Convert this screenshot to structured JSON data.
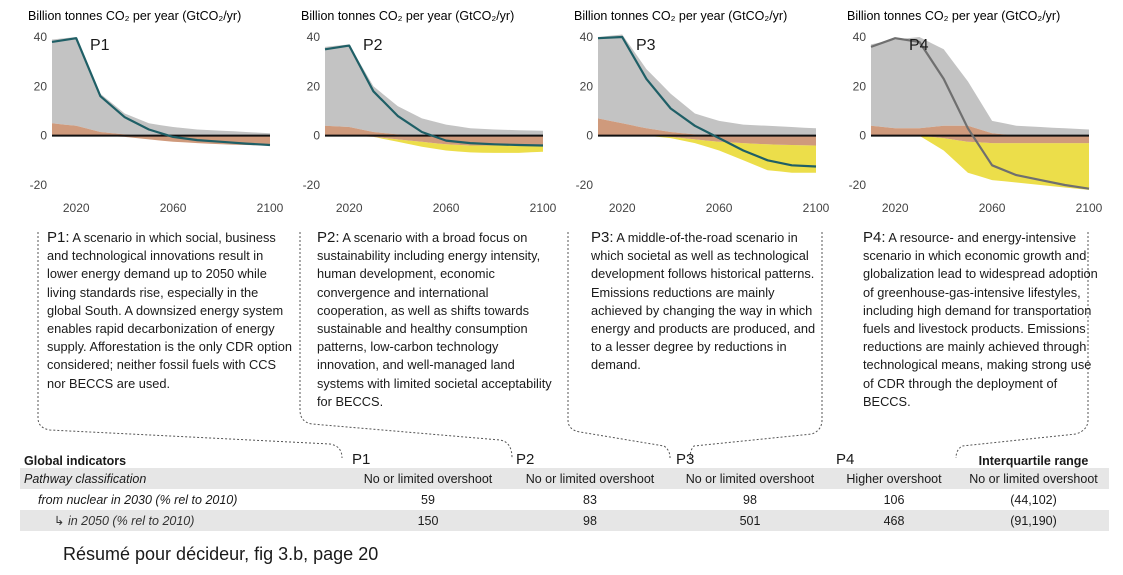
{
  "y_axis_title": "Billion tonnes CO₂ per year (GtCO₂/yr)",
  "chart_data": [
    {
      "type": "area",
      "panel_label": "P1",
      "title": "Billion tonnes CO₂ per year (GtCO₂/yr)",
      "x_ticks": [
        2020,
        2060,
        2100
      ],
      "y_ticks": [
        40,
        20,
        0,
        -20
      ],
      "xlim": [
        2010,
        2100
      ],
      "ylim": [
        -20,
        40
      ],
      "grid": false,
      "series": [
        {
          "role": "gray",
          "x": [
            2010,
            2020,
            2030,
            2040,
            2050,
            2060,
            2070,
            2080,
            2090,
            2100
          ],
          "values": [
            39,
            40,
            17,
            9,
            5,
            3.5,
            2.5,
            2,
            1.5,
            1
          ]
        },
        {
          "role": "tan_upper",
          "x": [
            2010,
            2020,
            2030,
            2040,
            2050,
            2060,
            2070,
            2080,
            2090,
            2100
          ],
          "values": [
            5,
            4,
            1.5,
            0.5,
            0,
            0,
            0,
            0,
            0,
            0
          ]
        },
        {
          "role": "tan_lower",
          "x": [
            2010,
            2020,
            2030,
            2040,
            2050,
            2060,
            2070,
            2080,
            2090,
            2100
          ],
          "values": [
            0,
            0,
            0,
            -0.5,
            -1.5,
            -2.5,
            -3,
            -3.5,
            -3.8,
            -4
          ]
        },
        {
          "role": "yellow_lower",
          "x": [
            2010,
            2100
          ],
          "values": [
            0,
            0
          ]
        },
        {
          "role": "net_line",
          "x": [
            2010,
            2020,
            2030,
            2040,
            2050,
            2060,
            2070,
            2080,
            2090,
            2100
          ],
          "values": [
            38,
            39.5,
            16,
            7.5,
            2.5,
            -0.5,
            -1.8,
            -2.5,
            -3.2,
            -3.8
          ]
        }
      ]
    },
    {
      "type": "area",
      "panel_label": "P2",
      "title": "Billion tonnes CO₂ per year (GtCO₂/yr)",
      "x_ticks": [
        2020,
        2060,
        2100
      ],
      "y_ticks": [
        40,
        20,
        0,
        -20
      ],
      "xlim": [
        2010,
        2100
      ],
      "ylim": [
        -20,
        40
      ],
      "grid": false,
      "series": [
        {
          "role": "gray",
          "x": [
            2010,
            2020,
            2030,
            2040,
            2050,
            2060,
            2070,
            2080,
            2090,
            2100
          ],
          "values": [
            36,
            37,
            20,
            12,
            7,
            4.5,
            3,
            2.5,
            2.2,
            2
          ]
        },
        {
          "role": "tan_upper",
          "x": [
            2010,
            2020,
            2030,
            2040,
            2050,
            2060,
            2070,
            2080,
            2090,
            2100
          ],
          "values": [
            4,
            3.5,
            1.5,
            0.5,
            0,
            0,
            0,
            0,
            0,
            0
          ]
        },
        {
          "role": "tan_lower",
          "x": [
            2010,
            2020,
            2030,
            2040,
            2050,
            2060,
            2070,
            2080,
            2090,
            2100
          ],
          "values": [
            0,
            0,
            -0.5,
            -1.5,
            -2.5,
            -3.5,
            -4,
            -4,
            -4,
            -4
          ]
        },
        {
          "role": "yellow_lower",
          "x": [
            2010,
            2020,
            2030,
            2040,
            2050,
            2060,
            2070,
            2080,
            2090,
            2100
          ],
          "values": [
            0,
            0,
            -0.5,
            -2.5,
            -4.5,
            -6,
            -6.8,
            -7,
            -7,
            -6.5
          ]
        },
        {
          "role": "net_line",
          "x": [
            2010,
            2020,
            2030,
            2040,
            2050,
            2060,
            2070,
            2080,
            2090,
            2100
          ],
          "values": [
            35,
            36.5,
            18,
            8,
            1.5,
            -2,
            -3,
            -3.5,
            -3.8,
            -4
          ]
        }
      ]
    },
    {
      "type": "area",
      "panel_label": "P3",
      "title": "Billion tonnes CO₂ per year (GtCO₂/yr)",
      "x_ticks": [
        2020,
        2060,
        2100
      ],
      "y_ticks": [
        40,
        20,
        0,
        -20
      ],
      "xlim": [
        2010,
        2100
      ],
      "ylim": [
        -20,
        40
      ],
      "grid": false,
      "series": [
        {
          "role": "gray",
          "x": [
            2010,
            2020,
            2030,
            2040,
            2050,
            2060,
            2070,
            2080,
            2090,
            2100
          ],
          "values": [
            40,
            41,
            27,
            17,
            9,
            6,
            4.5,
            4,
            3.5,
            3
          ]
        },
        {
          "role": "tan_upper",
          "x": [
            2010,
            2020,
            2030,
            2040,
            2050,
            2060,
            2070,
            2080,
            2090,
            2100
          ],
          "values": [
            7,
            5,
            3,
            1.5,
            0.5,
            0,
            0,
            0,
            0,
            0
          ]
        },
        {
          "role": "tan_lower",
          "x": [
            2010,
            2020,
            2030,
            2040,
            2050,
            2060,
            2070,
            2080,
            2090,
            2100
          ],
          "values": [
            0,
            0,
            0,
            -0.5,
            -1.5,
            -2.5,
            -3,
            -3.5,
            -3.8,
            -4
          ]
        },
        {
          "role": "yellow_lower",
          "x": [
            2010,
            2020,
            2030,
            2040,
            2050,
            2060,
            2070,
            2080,
            2090,
            2100
          ],
          "values": [
            0,
            0,
            0,
            -1,
            -3,
            -6,
            -10,
            -14,
            -15,
            -15
          ]
        },
        {
          "role": "net_line",
          "x": [
            2010,
            2020,
            2030,
            2040,
            2050,
            2060,
            2070,
            2080,
            2090,
            2100
          ],
          "values": [
            39.5,
            40,
            23,
            11,
            4,
            -1,
            -6,
            -10,
            -12,
            -12.5
          ]
        }
      ]
    },
    {
      "type": "area",
      "panel_label": "P4",
      "title": "Billion tonnes CO₂ per year (GtCO₂/yr)",
      "x_ticks": [
        2020,
        2060,
        2100
      ],
      "y_ticks": [
        40,
        20,
        0,
        -20
      ],
      "xlim": [
        2010,
        2100
      ],
      "ylim": [
        -20,
        40
      ],
      "grid": false,
      "series": [
        {
          "role": "gray",
          "x": [
            2010,
            2020,
            2030,
            2040,
            2050,
            2060,
            2070,
            2080,
            2090,
            2100
          ],
          "values": [
            37,
            39,
            40,
            35,
            22,
            6,
            4,
            3.5,
            3,
            2.5
          ]
        },
        {
          "role": "tan_upper",
          "x": [
            2010,
            2020,
            2030,
            2040,
            2050,
            2060,
            2070,
            2080,
            2090,
            2100
          ],
          "values": [
            4,
            3,
            3,
            4,
            4,
            1,
            0,
            0,
            0,
            0
          ]
        },
        {
          "role": "tan_lower",
          "x": [
            2010,
            2020,
            2030,
            2040,
            2050,
            2060,
            2070,
            2080,
            2090,
            2100
          ],
          "values": [
            0,
            0,
            0,
            -1,
            -2.5,
            -3,
            -3,
            -3,
            -3,
            -3
          ]
        },
        {
          "role": "yellow_lower",
          "x": [
            2010,
            2020,
            2030,
            2040,
            2050,
            2060,
            2070,
            2080,
            2090,
            2100
          ],
          "values": [
            0,
            0,
            0,
            -6,
            -15,
            -18,
            -19,
            -20,
            -21,
            -22
          ]
        },
        {
          "role": "net_line",
          "x": [
            2010,
            2020,
            2030,
            2040,
            2050,
            2060,
            2070,
            2080,
            2090,
            2100
          ],
          "values": [
            36,
            39.5,
            38,
            23,
            3,
            -12,
            -16,
            -18,
            -20,
            -21.5
          ]
        }
      ]
    }
  ],
  "descriptions": [
    {
      "id": "P1:",
      "text": "A scenario in which social, business and technological innovations result in lower energy demand up to 2050 while living standards rise, especially in the global South. A downsized energy system enables rapid decarbonization of energy supply. Afforestation is the only CDR option considered; neither fossil fuels with CCS nor BECCS are used."
    },
    {
      "id": "P2:",
      "text": "A scenario with a broad focus on sustainability including energy intensity, human development, economic convergence and international cooperation, as well as shifts towards sustainable and healthy consumption patterns, low-carbon technology innovation, and well-managed land systems with limited societal acceptability for BECCS."
    },
    {
      "id": "P3:",
      "text": "A middle-of-the-road scenario in which societal as well as technological development follows historical patterns. Emissions reductions are mainly achieved by changing the way in which energy and products are produced, and to a lesser degree by reductions in demand."
    },
    {
      "id": "P4:",
      "text": "A resource- and energy-intensive scenario in which economic growth and globalization lead to widespread adoption of greenhouse-gas-intensive lifestyles, including high demand for transportation fuels and livestock products. Emissions reductions are mainly achieved through technological means, making strong use of CDR through the deployment of BECCS."
    }
  ],
  "table": {
    "title": "Global indicators",
    "columns": [
      "P1",
      "P2",
      "P3",
      "P4",
      "Interquartile range"
    ],
    "rows": [
      {
        "label": "Pathway classification",
        "cells": [
          "No or limited overshoot",
          "No or limited overshoot",
          "No or limited overshoot",
          "Higher overshoot",
          "No or limited overshoot"
        ]
      },
      {
        "label": "from nuclear in 2030 (% rel to 2010)",
        "cells": [
          "59",
          "83",
          "98",
          "106",
          "(44,102)"
        ]
      },
      {
        "label": "↳ in 2050 (% rel to 2010)",
        "cells": [
          "150",
          "98",
          "501",
          "468",
          "(91,190)"
        ]
      }
    ]
  },
  "caption": "Résumé pour décideur, fig 3.b, page 20",
  "colors": {
    "gray": "#c3c3c3",
    "tan": "#cf9a7c",
    "yellow": "#ecde4a",
    "net_line_p1_p3": "#1f5f66",
    "net_line_p4": "#6f6f6f",
    "zero_line": "#111111"
  }
}
